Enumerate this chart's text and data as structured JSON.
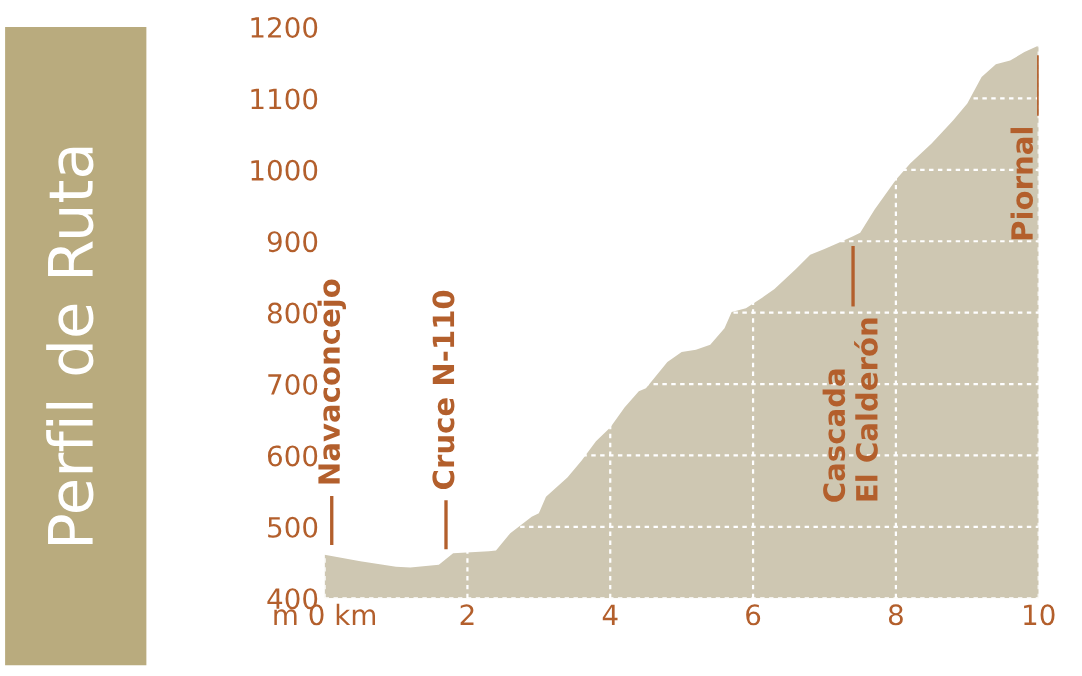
{
  "chart_data": {
    "type": "area",
    "title": "Perfil de Ruta",
    "color": "#cec7b2",
    "x": [
      0,
      0.5,
      1.0,
      1.2,
      1.6,
      1.8,
      2.3,
      2.4,
      2.6,
      2.9,
      3.0,
      3.1,
      3.4,
      3.6,
      3.8,
      4.0,
      4.2,
      4.4,
      4.5,
      4.8,
      5.0,
      5.2,
      5.4,
      5.6,
      5.7,
      5.9,
      6.1,
      6.3,
      6.6,
      6.8,
      7.0,
      7.2,
      7.4,
      7.5,
      7.7,
      8.0,
      8.2,
      8.5,
      8.8,
      9.0,
      9.2,
      9.4,
      9.6,
      9.8,
      10.0
    ],
    "values": [
      461,
      452,
      444,
      443,
      447,
      463,
      466,
      467,
      491,
      514,
      519,
      542,
      569,
      593,
      620,
      639,
      667,
      690,
      694,
      731,
      745,
      748,
      755,
      778,
      801,
      806,
      819,
      833,
      861,
      881,
      889,
      898,
      907,
      912,
      944,
      986,
      1009,
      1037,
      1069,
      1093,
      1130,
      1148,
      1153,
      1165,
      1174
    ],
    "xlim": [
      0,
      10
    ],
    "ylim": [
      400,
      1200
    ],
    "xticks": [
      {
        "value": 0,
        "label": "m 0 km"
      },
      2,
      4,
      6,
      8,
      10
    ],
    "yticks": [
      400,
      500,
      600,
      700,
      800,
      900,
      1000,
      1100,
      1200
    ],
    "grid": true,
    "annotations": [
      {
        "text": "Navaconcejo",
        "x": 0.1,
        "y": 461
      },
      {
        "text": "Cruce N-110",
        "x": 1.7,
        "y": 455
      },
      {
        "text": "Cascada\nEl Calderón",
        "x": 7.4,
        "y": 907
      },
      {
        "text": "Piornal",
        "x": 10,
        "y": 1174
      }
    ]
  }
}
